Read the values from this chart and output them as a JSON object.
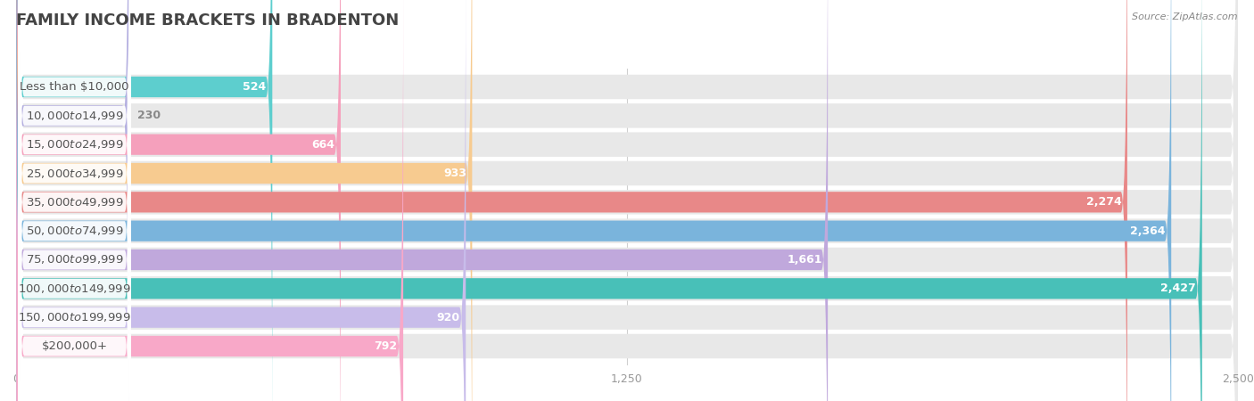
{
  "title": "FAMILY INCOME BRACKETS IN BRADENTON",
  "source": "Source: ZipAtlas.com",
  "categories": [
    "Less than $10,000",
    "$10,000 to $14,999",
    "$15,000 to $24,999",
    "$25,000 to $34,999",
    "$35,000 to $49,999",
    "$50,000 to $74,999",
    "$75,000 to $99,999",
    "$100,000 to $149,999",
    "$150,000 to $199,999",
    "$200,000+"
  ],
  "values": [
    524,
    230,
    664,
    933,
    2274,
    2364,
    1661,
    2427,
    920,
    792
  ],
  "colors": [
    "#5dcece",
    "#b3aee0",
    "#f5a0bc",
    "#f7cb90",
    "#e88888",
    "#7ab4dc",
    "#c0a8dc",
    "#48c0b8",
    "#c8bcea",
    "#f8a8c8"
  ],
  "xlim_max": 2500,
  "xticks": [
    0,
    1250,
    2500
  ],
  "bar_bg_color": "#e8e8e8",
  "label_bg_color": "#ffffff",
  "title_color": "#444444",
  "label_color": "#555555",
  "value_color_inside": "#ffffff",
  "value_color_outside": "#888888",
  "title_fontsize": 13,
  "label_fontsize": 9.5,
  "value_fontsize": 9,
  "tick_fontsize": 9,
  "source_fontsize": 8
}
